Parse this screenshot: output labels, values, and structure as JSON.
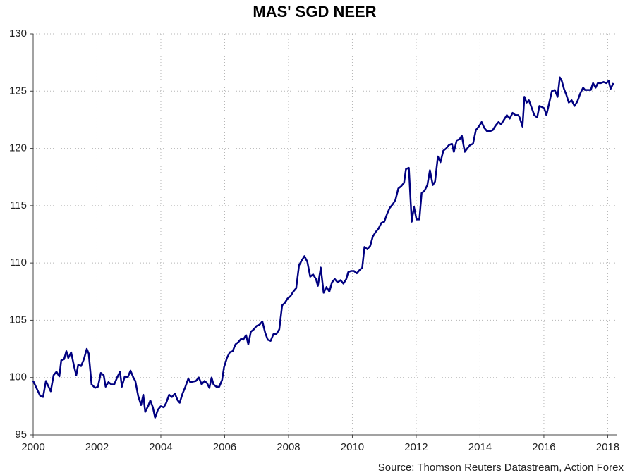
{
  "chart_data": {
    "type": "line",
    "title": "MAS' SGD NEER",
    "source": "Source: Thomson Reuters Datastream, Action Forex",
    "xlim": [
      2000,
      2018.3
    ],
    "xticks": [
      2000,
      2002,
      2004,
      2006,
      2008,
      2010,
      2012,
      2014,
      2016,
      2018
    ],
    "ylim": [
      95,
      130
    ],
    "yticks": [
      95,
      100,
      105,
      110,
      115,
      120,
      125,
      130
    ],
    "grid": true,
    "series": [
      {
        "name": "SGD NEER",
        "color": "#000080",
        "x": [
          2000.0,
          2000.22,
          2000.31,
          2000.4,
          2000.55,
          2000.64,
          2000.73,
          2000.82,
          2000.88,
          2000.97,
          2001.04,
          2001.1,
          2001.19,
          2001.28,
          2001.35,
          2001.41,
          2001.5,
          2001.59,
          2001.68,
          2001.74,
          2001.83,
          2001.94,
          2002.03,
          2002.12,
          2002.21,
          2002.27,
          2002.36,
          2002.45,
          2002.54,
          2002.63,
          2002.72,
          2002.78,
          2002.87,
          2002.96,
          2003.05,
          2003.14,
          2003.2,
          2003.29,
          2003.38,
          2003.45,
          2003.51,
          2003.6,
          2003.67,
          2003.75,
          2003.82,
          2003.91,
          2004.0,
          2004.09,
          2004.17,
          2004.26,
          2004.35,
          2004.44,
          2004.53,
          2004.59,
          2004.68,
          2004.77,
          2004.86,
          2004.92,
          2005.1,
          2005.19,
          2005.28,
          2005.37,
          2005.45,
          2005.52,
          2005.59,
          2005.65,
          2005.74,
          2005.83,
          2005.92,
          2005.98,
          2006.07,
          2006.16,
          2006.25,
          2006.34,
          2006.43,
          2006.52,
          2006.58,
          2006.67,
          2006.74,
          2006.82,
          2006.91,
          2007.0,
          2007.09,
          2007.18,
          2007.27,
          2007.35,
          2007.44,
          2007.53,
          2007.62,
          2007.71,
          2007.8,
          2007.88,
          2007.97,
          2008.06,
          2008.15,
          2008.24,
          2008.33,
          2008.41,
          2008.5,
          2008.59,
          2008.68,
          2008.77,
          2008.86,
          2008.92,
          2009.01,
          2009.1,
          2009.19,
          2009.28,
          2009.36,
          2009.45,
          2009.54,
          2009.63,
          2009.72,
          2009.81,
          2009.87,
          2009.96,
          2010.05,
          2010.14,
          2010.23,
          2010.31,
          2010.38,
          2010.47,
          2010.56,
          2010.64,
          2010.73,
          2010.82,
          2010.91,
          2011.0,
          2011.09,
          2011.17,
          2011.26,
          2011.35,
          2011.44,
          2011.53,
          2011.62,
          2011.68,
          2011.77,
          2011.86,
          2011.93,
          2012.01,
          2012.1,
          2012.17,
          2012.26,
          2012.35,
          2012.43,
          2012.52,
          2012.59,
          2012.68,
          2012.76,
          2012.85,
          2012.94,
          2013.03,
          2013.12,
          2013.18,
          2013.27,
          2013.36,
          2013.43,
          2013.52,
          2013.6,
          2013.69,
          2013.78,
          2013.87,
          2013.96,
          2014.05,
          2014.13,
          2014.22,
          2014.31,
          2014.4,
          2014.49,
          2014.58,
          2014.66,
          2014.75,
          2014.84,
          2014.93,
          2015.02,
          2015.11,
          2015.2,
          2015.24,
          2015.33,
          2015.39,
          2015.46,
          2015.53,
          2015.61,
          2015.7,
          2015.79,
          2015.86,
          2015.95,
          2016.01,
          2016.08,
          2016.17,
          2016.25,
          2016.34,
          2016.43,
          2016.5,
          2016.56,
          2016.63,
          2016.7,
          2016.78,
          2016.87,
          2016.96,
          2017.05,
          2017.14,
          2017.23,
          2017.29,
          2017.38,
          2017.47,
          2017.54,
          2017.62,
          2017.69,
          2017.78,
          2017.87,
          2017.96,
          2018.03,
          2018.09,
          2018.18
        ],
        "values": [
          99.7,
          98.4,
          98.3,
          99.7,
          98.8,
          100.2,
          100.5,
          100.1,
          101.5,
          101.6,
          102.3,
          101.7,
          102.2,
          101.0,
          100.2,
          101.1,
          101.0,
          101.6,
          102.5,
          102.1,
          99.4,
          99.1,
          99.2,
          100.4,
          100.2,
          99.2,
          99.6,
          99.4,
          99.4,
          100.0,
          100.5,
          99.2,
          100.1,
          100.0,
          100.6,
          100.0,
          99.7,
          98.4,
          97.6,
          98.5,
          97.0,
          97.5,
          98.0,
          97.4,
          96.5,
          97.2,
          97.5,
          97.4,
          97.8,
          98.5,
          98.3,
          98.6,
          98.0,
          97.8,
          98.6,
          99.2,
          99.9,
          99.6,
          99.7,
          100.0,
          99.4,
          99.7,
          99.5,
          99.1,
          100.0,
          99.4,
          99.2,
          99.2,
          99.8,
          100.9,
          101.7,
          102.2,
          102.3,
          102.9,
          103.1,
          103.4,
          103.3,
          103.7,
          102.9,
          104.0,
          104.2,
          104.5,
          104.6,
          104.9,
          103.9,
          103.3,
          103.2,
          103.8,
          103.8,
          104.2,
          106.3,
          106.5,
          106.9,
          107.1,
          107.5,
          107.8,
          109.8,
          110.2,
          110.6,
          110.1,
          108.8,
          109.0,
          108.6,
          108.0,
          109.6,
          107.4,
          107.9,
          107.5,
          108.3,
          108.6,
          108.3,
          108.5,
          108.2,
          108.6,
          109.2,
          109.3,
          109.3,
          109.1,
          109.4,
          109.6,
          111.4,
          111.2,
          111.5,
          112.3,
          112.7,
          113.0,
          113.5,
          113.6,
          114.3,
          114.8,
          115.1,
          115.5,
          116.5,
          116.7,
          117.0,
          118.2,
          118.3,
          113.6,
          114.9,
          113.8,
          113.8,
          116.1,
          116.3,
          116.8,
          118.1,
          116.8,
          117.1,
          119.3,
          118.8,
          119.8,
          120.0,
          120.3,
          120.4,
          119.7,
          120.7,
          120.8,
          121.1,
          119.7,
          120.0,
          120.3,
          120.4,
          121.6,
          121.9,
          122.3,
          121.8,
          121.5,
          121.5,
          121.6,
          122.0,
          122.3,
          122.1,
          122.5,
          122.9,
          122.6,
          123.1,
          122.9,
          122.9,
          122.7,
          121.9,
          124.5,
          124.0,
          124.2,
          123.6,
          122.9,
          122.7,
          123.7,
          123.6,
          123.5,
          122.9,
          124.0,
          125.0,
          125.1,
          124.5,
          126.2,
          125.9,
          125.2,
          124.7,
          124.0,
          124.2,
          123.7,
          124.1,
          124.8,
          125.3,
          125.1,
          125.1,
          125.1,
          125.7,
          125.3,
          125.7,
          125.7,
          125.8,
          125.7,
          125.9,
          125.2,
          125.7
        ]
      }
    ]
  }
}
